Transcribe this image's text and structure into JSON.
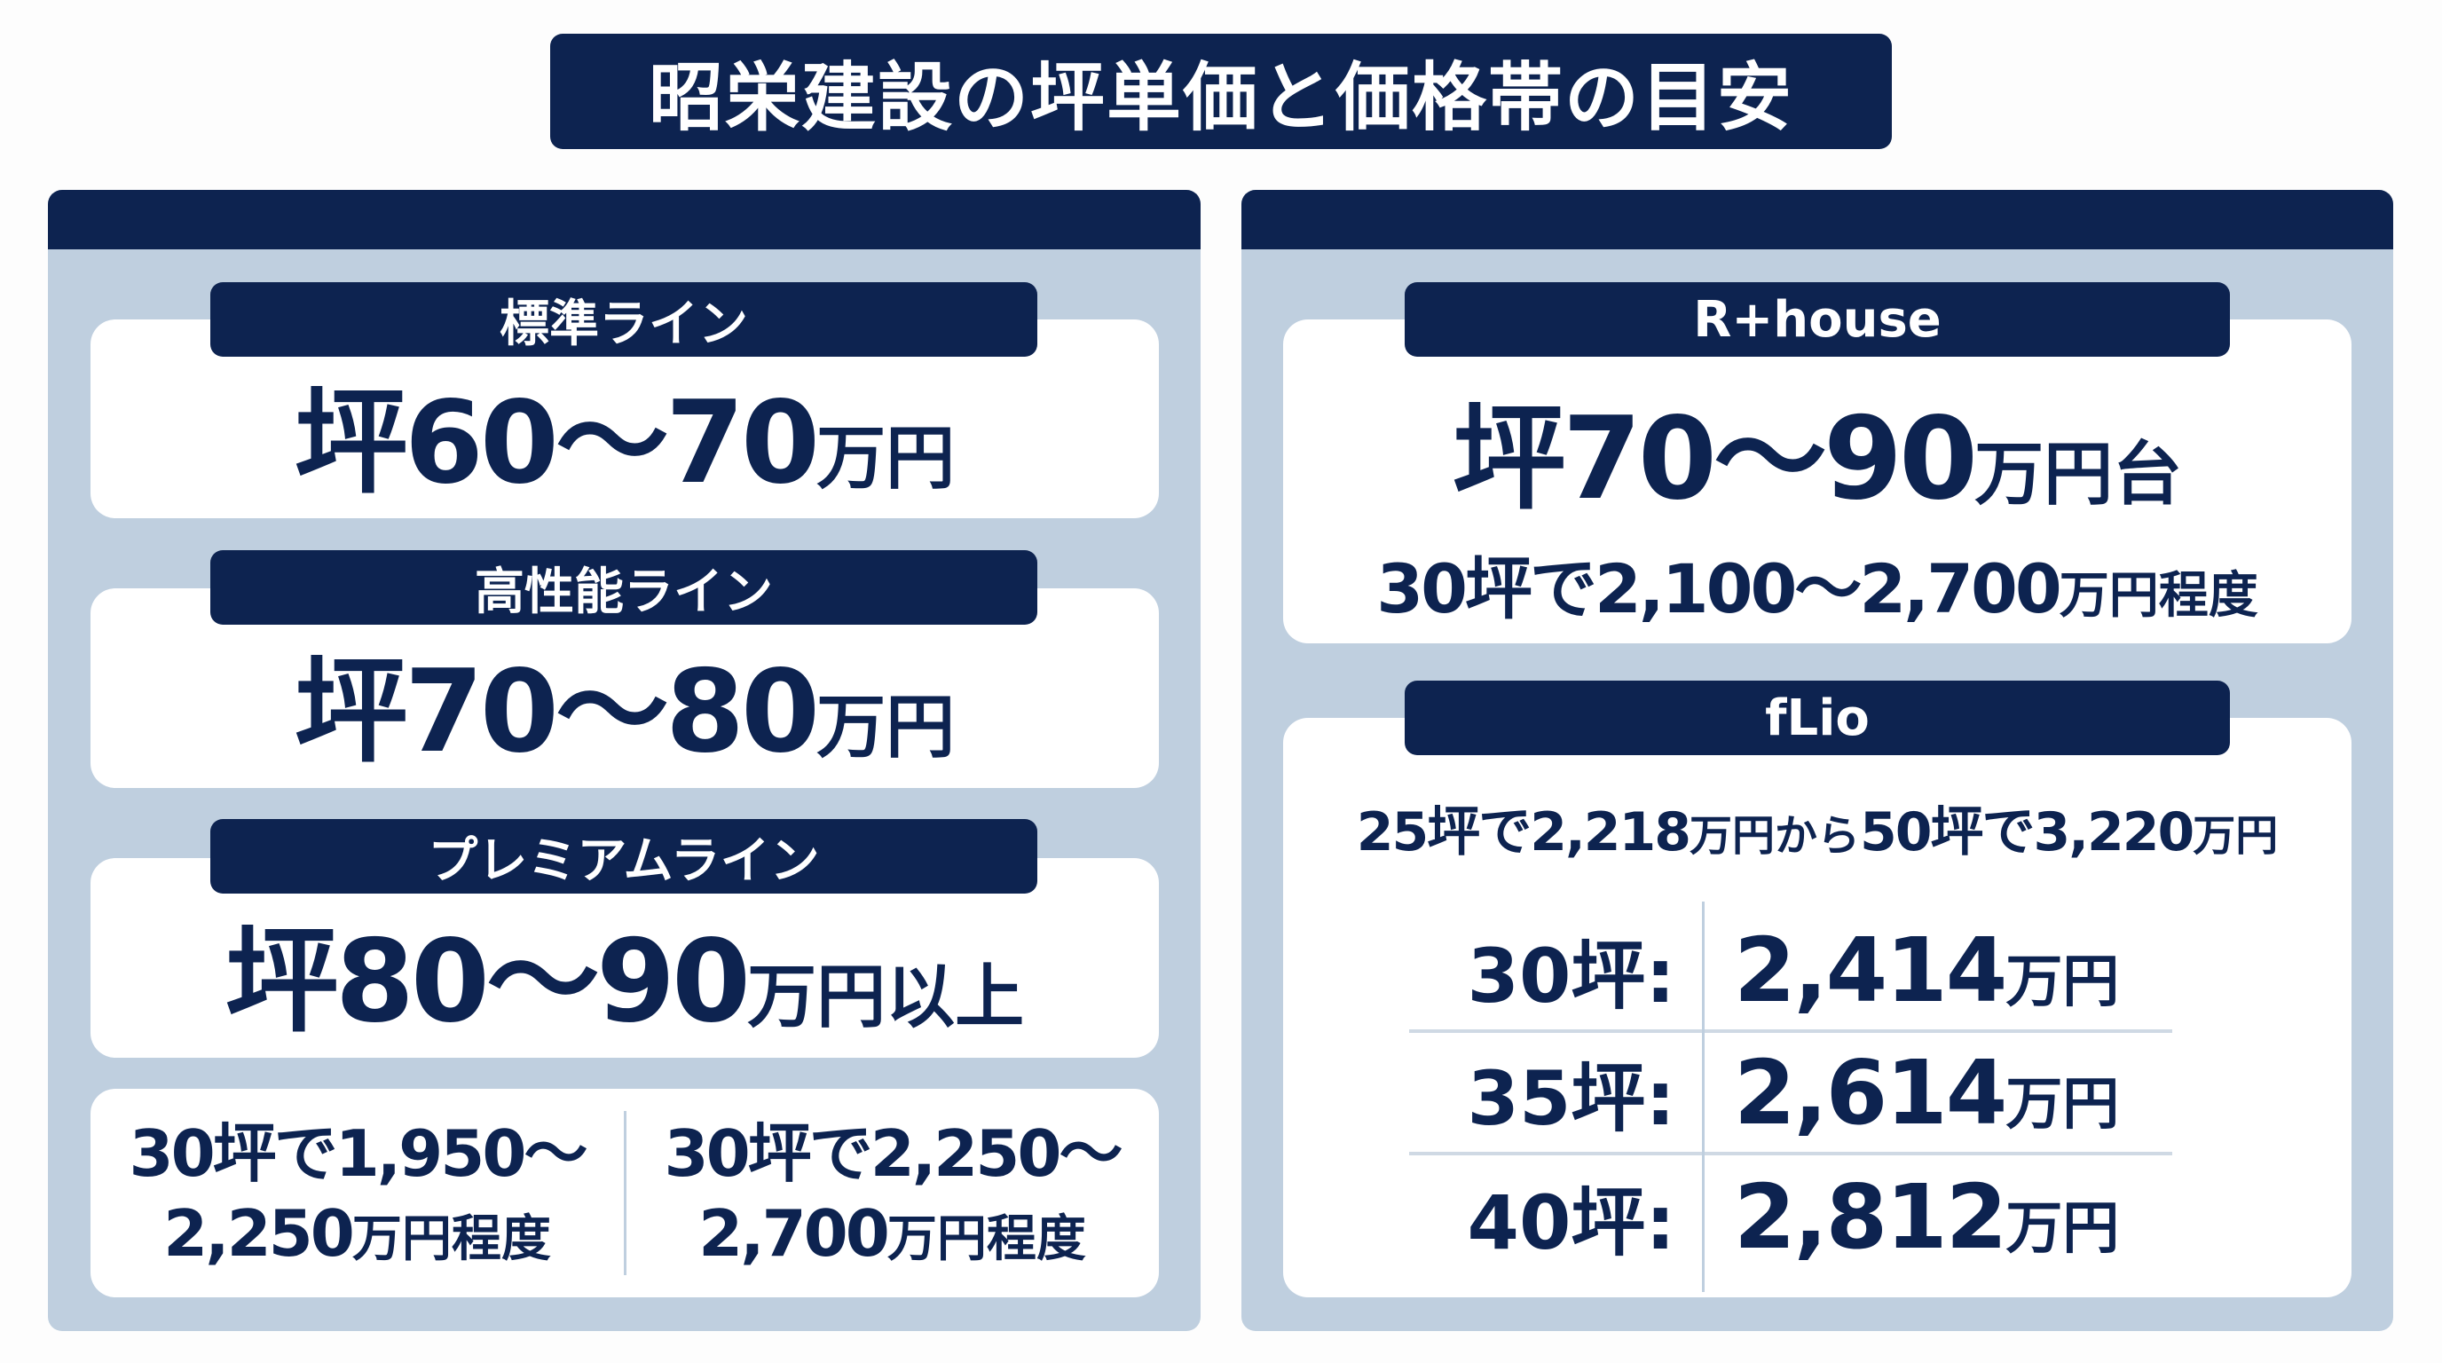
{
  "title": "昭栄建設の坪単価と価格帯の目安",
  "colors": {
    "navy": "#0d2350",
    "panel": "#bfcfdf",
    "card": "#ffffff"
  },
  "left": {
    "lines": [
      {
        "label": "標準ライン",
        "price": "坪60〜70",
        "unit": "万円"
      },
      {
        "label": "高性能ライン",
        "price": "坪70〜80",
        "unit": "万円"
      },
      {
        "label": "プレミアムライン",
        "price": "坪80〜90",
        "unit": "万円以上"
      }
    ],
    "notes": [
      {
        "a": "30坪で1,950〜",
        "b": "2,250",
        "c": "万円程度"
      },
      {
        "a": "30坪で2,250〜",
        "b": "2,700",
        "c": "万円程度"
      }
    ]
  },
  "right": {
    "rhouse": {
      "label": "R+house",
      "price": "坪70〜90",
      "unit": "万円台",
      "sub": "30坪で2,100〜2,700",
      "sub_unit": "万円程度"
    },
    "flio": {
      "label": "fLio",
      "range_a": "25坪で2,218",
      "range_u1": "万円から",
      "range_b": "50坪で3,220",
      "range_u2": "万円",
      "rows": [
        {
          "size": "30坪:",
          "price": "2,414",
          "unit": "万円"
        },
        {
          "size": "35坪:",
          "price": "2,614",
          "unit": "万円"
        },
        {
          "size": "40坪:",
          "price": "2,812",
          "unit": "万円"
        }
      ]
    }
  }
}
